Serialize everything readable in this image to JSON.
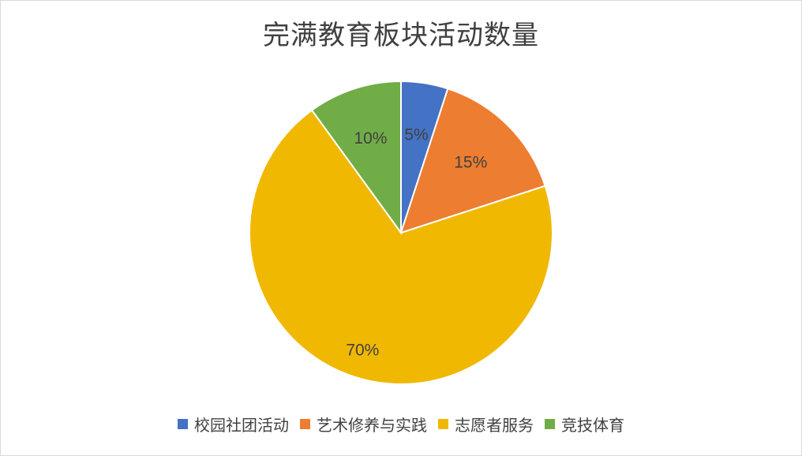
{
  "chart_data": {
    "type": "pie",
    "title": "完满教育板块活动数量",
    "categories": [
      "校园社团活动",
      "艺术修养与实践",
      "志愿者服务",
      "竞技体育"
    ],
    "values": [
      5,
      15,
      70,
      10
    ],
    "labels": [
      "5%",
      "15%",
      "70%",
      "10%"
    ],
    "colors": [
      "#4472c4",
      "#ed7d31",
      "#f0b800",
      "#70ad47"
    ],
    "legend_position": "bottom",
    "start_angle": "12 o'clock",
    "direction": "clockwise"
  }
}
